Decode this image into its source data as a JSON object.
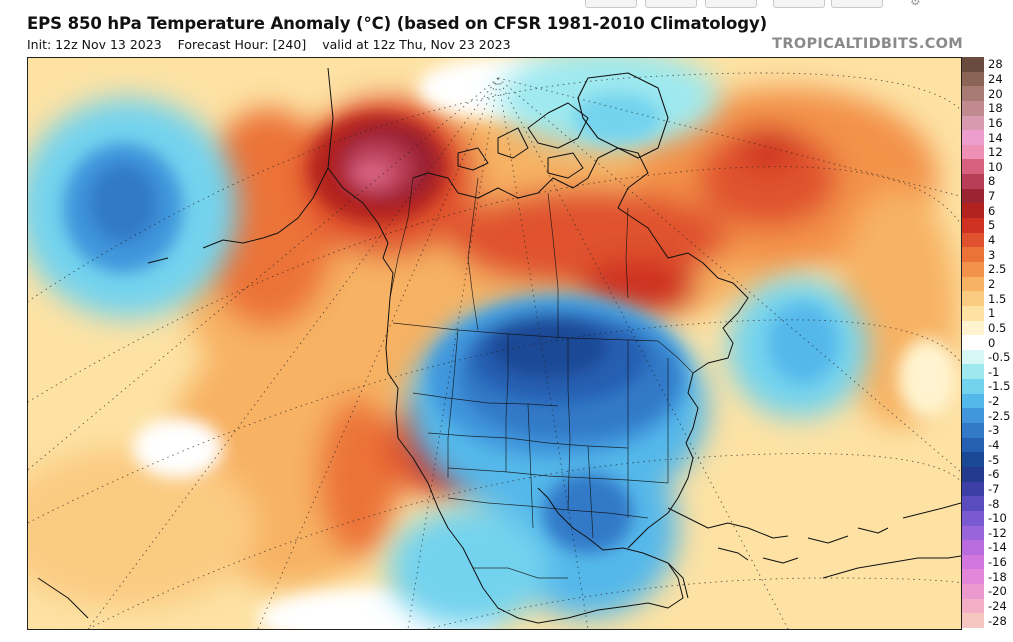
{
  "header": {
    "title": "EPS 850 hPa Temperature Anomaly (°C) (based on CFSR 1981-2010 Climatology)",
    "init": "Init: 12z Nov 13 2023",
    "forecast_hour": "Forecast Hour: [240]",
    "valid": "valid at 12z Thu, Nov 23 2023",
    "brand": "TROPICALTIDBITS.COM"
  },
  "legend": {
    "items": [
      {
        "label": "28",
        "color": "#6b4b3e"
      },
      {
        "label": "24",
        "color": "#8a6457"
      },
      {
        "label": "20",
        "color": "#a77a73"
      },
      {
        "label": "18",
        "color": "#c08a8e"
      },
      {
        "label": "16",
        "color": "#d79aae"
      },
      {
        "label": "14",
        "color": "#ec9fcd"
      },
      {
        "label": "12",
        "color": "#ee8fb4"
      },
      {
        "label": "10",
        "color": "#d6607e"
      },
      {
        "label": "8",
        "color": "#b83d56"
      },
      {
        "label": "7",
        "color": "#9b2433"
      },
      {
        "label": "6",
        "color": "#b2221f"
      },
      {
        "label": "5",
        "color": "#cf3222"
      },
      {
        "label": "4",
        "color": "#e0522d"
      },
      {
        "label": "3",
        "color": "#ec7338"
      },
      {
        "label": "2.5",
        "color": "#f3924a"
      },
      {
        "label": "2",
        "color": "#f7b264"
      },
      {
        "label": "1.5",
        "color": "#fbcb82"
      },
      {
        "label": "1",
        "color": "#fde2a4"
      },
      {
        "label": "0.5",
        "color": "#fff4cf"
      },
      {
        "label": "0",
        "color": "#ffffff"
      },
      {
        "label": "-0.5",
        "color": "#d7f7f7"
      },
      {
        "label": "-1",
        "color": "#9ee9ef"
      },
      {
        "label": "-1.5",
        "color": "#73d3ee"
      },
      {
        "label": "-2",
        "color": "#55b8ea"
      },
      {
        "label": "-2.5",
        "color": "#4196dc"
      },
      {
        "label": "-3",
        "color": "#3279c8"
      },
      {
        "label": "-4",
        "color": "#255fb2"
      },
      {
        "label": "-5",
        "color": "#1b4996"
      },
      {
        "label": "-6",
        "color": "#243a8c"
      },
      {
        "label": "-7",
        "color": "#3b3fa6"
      },
      {
        "label": "-8",
        "color": "#5a4cc0"
      },
      {
        "label": "-10",
        "color": "#7a5ad1"
      },
      {
        "label": "-12",
        "color": "#9a64db"
      },
      {
        "label": "-14",
        "color": "#b86cde"
      },
      {
        "label": "-16",
        "color": "#d277df"
      },
      {
        "label": "-18",
        "color": "#e286d9"
      },
      {
        "label": "-20",
        "color": "#ec99cf"
      },
      {
        "label": "-24",
        "color": "#f2afc6"
      },
      {
        "label": "-28",
        "color": "#f6c6c0"
      }
    ]
  }
}
